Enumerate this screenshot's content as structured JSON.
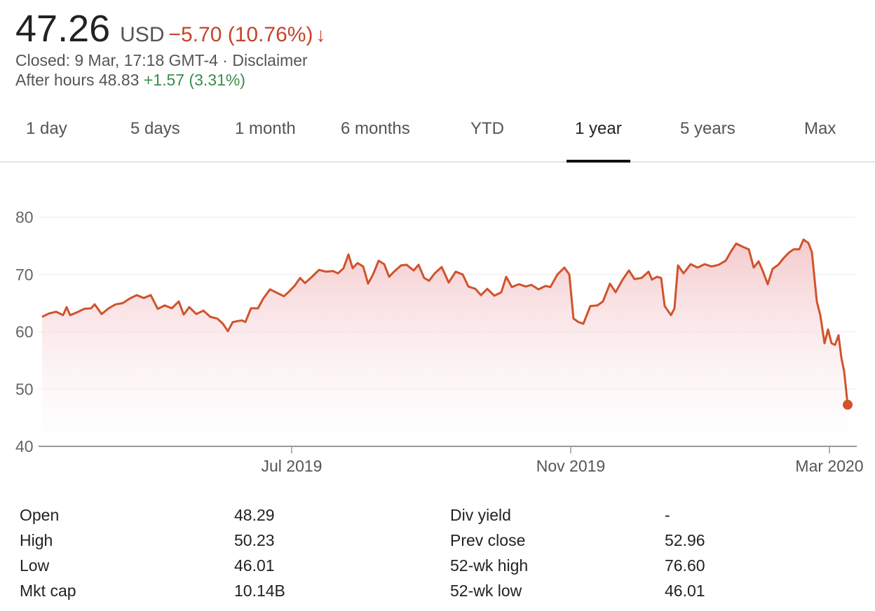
{
  "quote": {
    "price": "47.26",
    "currency": "USD",
    "change": "−5.70 (10.76%)",
    "arrow": "↓",
    "closed": "Closed: 9 Mar, 17:18 GMT-4 · ",
    "disclaimer": "Disclaimer",
    "after_label": "After hours 48.83",
    "after_change": "+1.57 (3.31%)"
  },
  "tabs": [
    "1 day",
    "5 days",
    "1 month",
    "6 months",
    "YTD",
    "1 year",
    "5 years",
    "Max"
  ],
  "active_tab": "1 year",
  "colors": {
    "negative": "#c5452b",
    "positive": "#3c8c4c",
    "line": "#d0532c"
  },
  "chart_data": {
    "type": "area",
    "title": "",
    "ylim": [
      40,
      80
    ],
    "yticks": [
      "80",
      "70",
      "60",
      "50",
      "40"
    ],
    "xticks": [
      "Jul 2019",
      "Nov 2019",
      "Mar 2020"
    ],
    "grid": true,
    "values": [
      62.6,
      63.2,
      63.5,
      62.9,
      64.3,
      62.9,
      63.4,
      64,
      64.1,
      64.8,
      63.1,
      64.1,
      64.8,
      65,
      65.8,
      66.4,
      65.9,
      66.4,
      64,
      64.6,
      64.1,
      65.3,
      63,
      64.3,
      63.1,
      63.7,
      62.6,
      62.3,
      61.4,
      60.1,
      61.7,
      62,
      61.7,
      64.1,
      64.1,
      65.7,
      67.4,
      66.8,
      66.2,
      67,
      68,
      69.4,
      68.5,
      69.6,
      70.8,
      70.5,
      70.6,
      70.2,
      71.1,
      73.5,
      71.1,
      72,
      71.4,
      68.4,
      70,
      72.4,
      71.8,
      69.6,
      70.5,
      71.6,
      71.7,
      70.7,
      71.7,
      69.4,
      68.9,
      70.2,
      71.3,
      68.6,
      70.5,
      70,
      67.9,
      67.5,
      66.4,
      67.5,
      66.3,
      66.9,
      69.6,
      67.8,
      68.3,
      67.9,
      68.2,
      67.4,
      68,
      67.8,
      70,
      71.2,
      70,
      62.3,
      61.7,
      61.4,
      64.5,
      64.6,
      65.3,
      68.4,
      66.9,
      69.1,
      70.7,
      69.2,
      69.4,
      70.5,
      69.1,
      69.6,
      69.4,
      64.5,
      62.9,
      64.1,
      71.6,
      70.2,
      71.8,
      71.2,
      71.8,
      71.4,
      71.7,
      72.4,
      74.1,
      75.4,
      74.8,
      74.4,
      71.2,
      72.3,
      70.6,
      68.3,
      71,
      71.7,
      72.9,
      73.8,
      74.4,
      74.4,
      76.1,
      75.5,
      73.9,
      65.3,
      62.9,
      58,
      60.4,
      58,
      57.7,
      59.4,
      55.5,
      53.1,
      47.26
    ]
  },
  "stats": {
    "left": [
      [
        "Open",
        "48.29"
      ],
      [
        "High",
        "50.23"
      ],
      [
        "Low",
        "46.01"
      ],
      [
        "Mkt cap",
        "10.14B"
      ]
    ],
    "right": [
      [
        "Div yield",
        "-"
      ],
      [
        "Prev close",
        "52.96"
      ],
      [
        "52-wk high",
        "76.60"
      ],
      [
        "52-wk low",
        "46.01"
      ]
    ]
  }
}
